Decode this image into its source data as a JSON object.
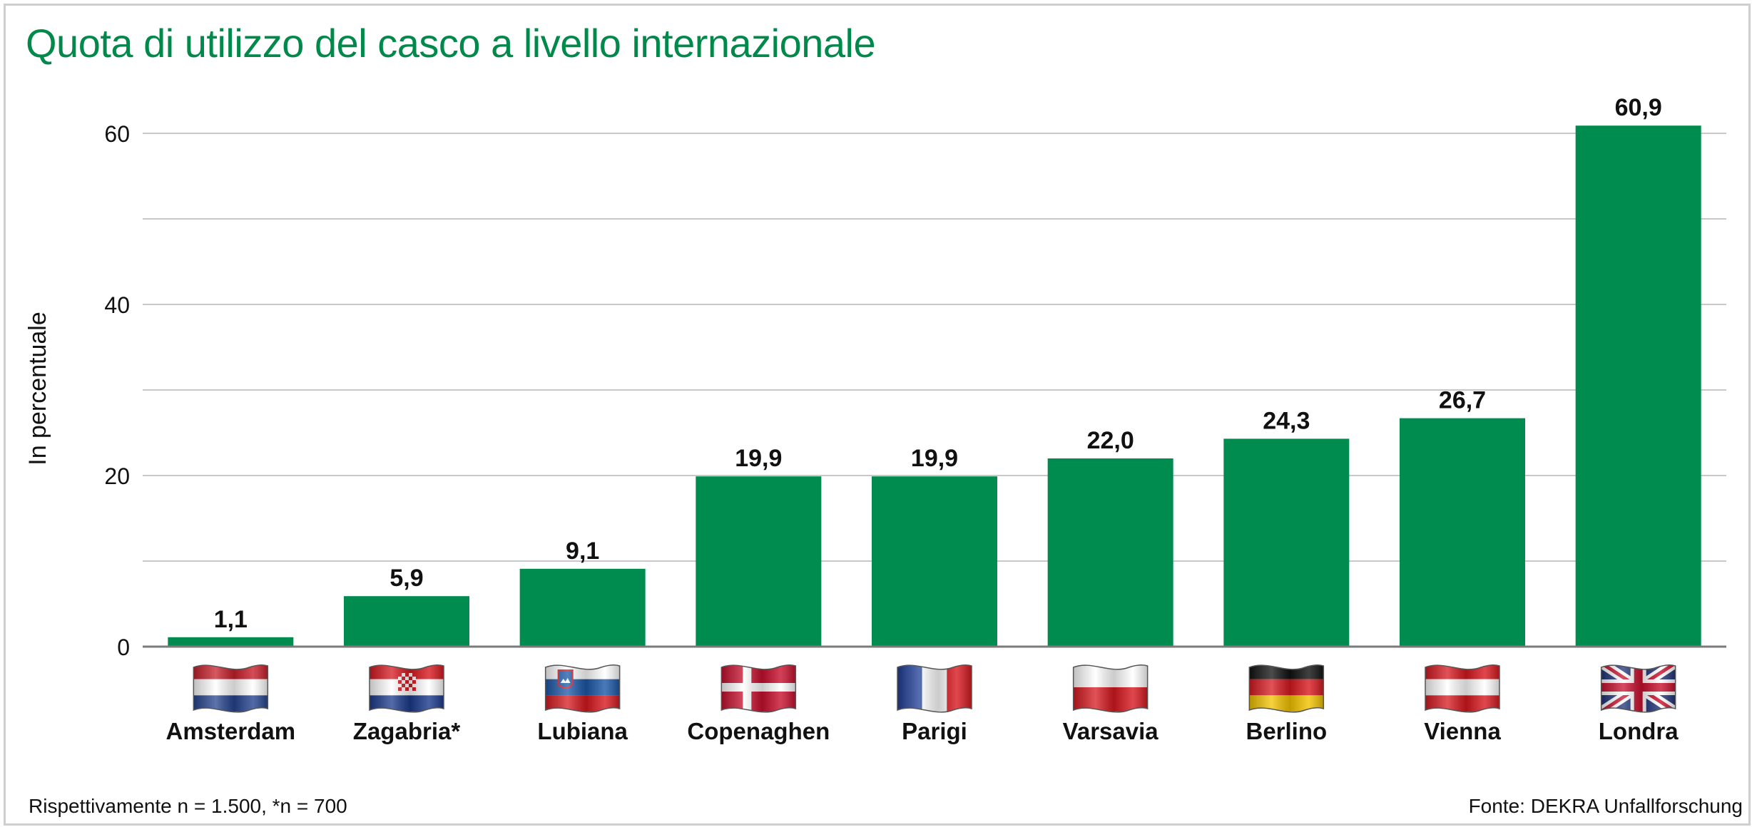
{
  "page": {
    "title": "Quota di utilizzo del casco a livello internazionale",
    "footnote": "Rispettivamente n = 1.500, *n = 700",
    "source": "Fonte: DEKRA Unfallforschung"
  },
  "colors": {
    "bar": "#008c4f",
    "title": "#00894a",
    "grid": "#c8c8c8",
    "axis": "#7a7a7a"
  },
  "chart_data": {
    "type": "bar",
    "title": "Quota di utilizzo del casco a livello internazionale",
    "xlabel": "",
    "ylabel": "In percentuale",
    "ylim": [
      0,
      60
    ],
    "yticks": [
      0,
      20,
      40,
      60
    ],
    "grid": true,
    "categories": [
      "Amsterdam",
      "Zagabria*",
      "Lubiana",
      "Copenaghen",
      "Parigi",
      "Varsavia",
      "Berlino",
      "Vienna",
      "Londra"
    ],
    "values": [
      1.1,
      5.9,
      9.1,
      19.9,
      19.9,
      22.0,
      24.3,
      26.7,
      60.9
    ],
    "value_labels": [
      "1,1",
      "5,9",
      "9,1",
      "19,9",
      "19,9",
      "22,0",
      "24,3",
      "26,7",
      "60,9"
    ],
    "flags": [
      "netherlands-flag-icon",
      "croatia-flag-icon",
      "slovenia-flag-icon",
      "denmark-flag-icon",
      "france-flag-icon",
      "poland-flag-icon",
      "germany-flag-icon",
      "austria-flag-icon",
      "united-kingdom-flag-icon"
    ]
  }
}
